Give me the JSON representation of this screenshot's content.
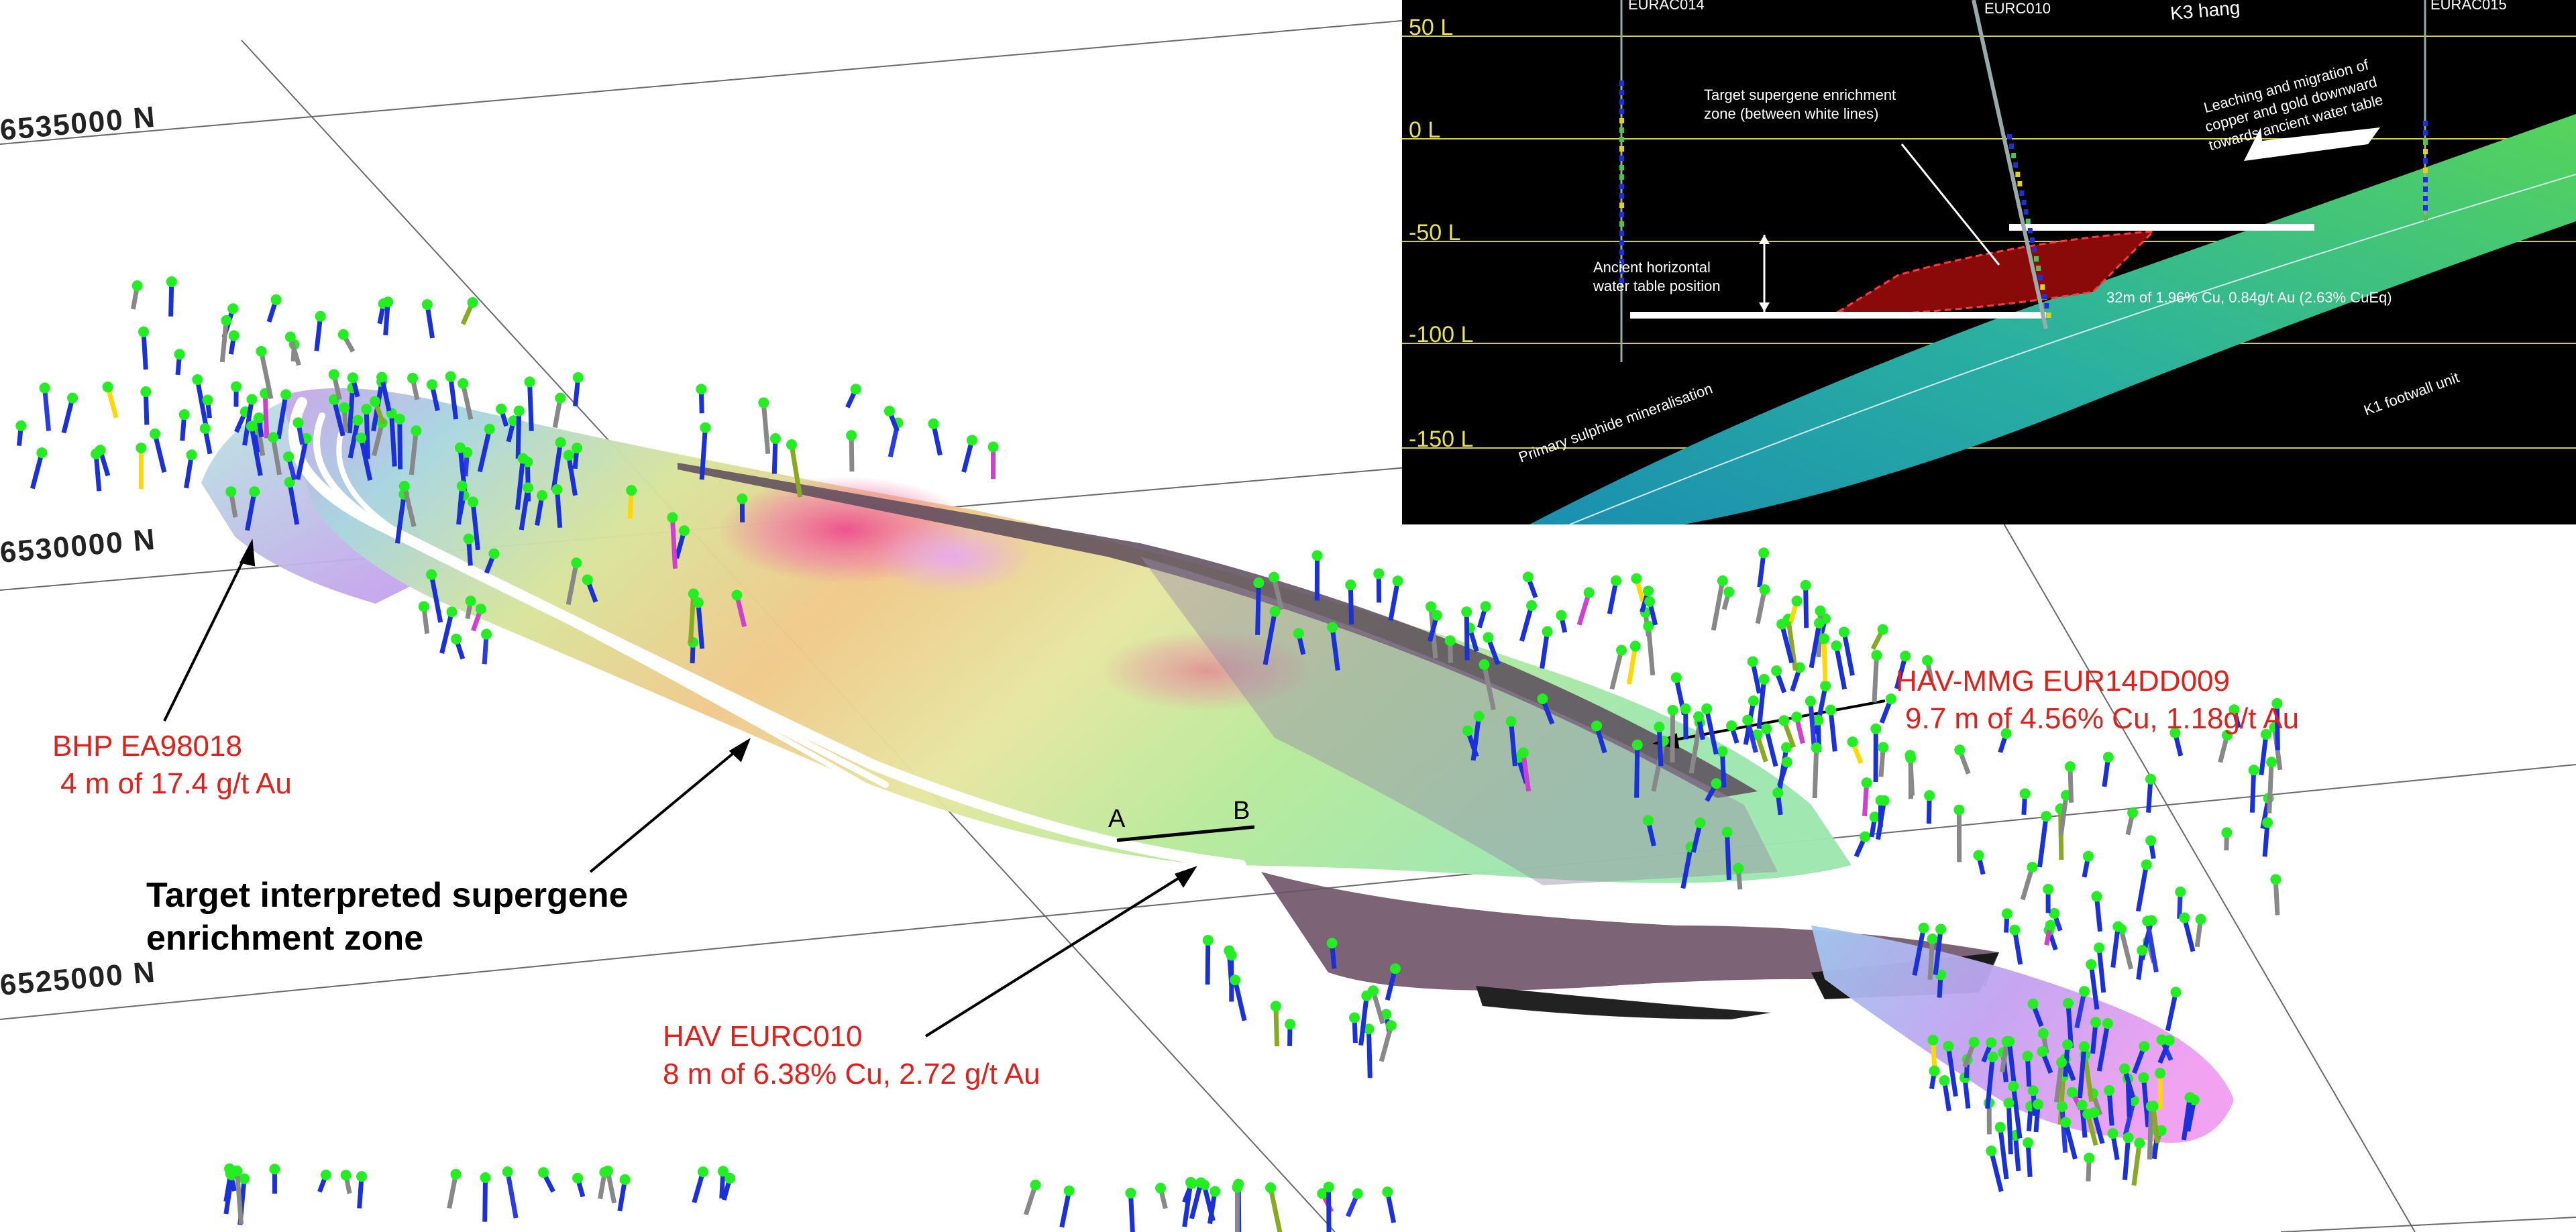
{
  "grid_labels": {
    "n1": "6535000 N",
    "n2": "6530000 N",
    "n3": "6525000 N"
  },
  "annotations": {
    "bhp_title": "BHP EA98018",
    "bhp_detail": "4 m of 17.4 g/t Au",
    "target_line1": "Target interpreted supergene",
    "target_line2": "enrichment zone",
    "hav_title": "HAV EURC010",
    "hav_detail": "8 m of 6.38% Cu, 2.72 g/t Au",
    "mmg_title": "HAV-MMG EUR14DD009",
    "mmg_detail": "9.7 m of 4.56% Cu, 1.18g/t Au",
    "section_a": "A",
    "section_b": "B"
  },
  "inset": {
    "levels": [
      "50 L",
      "0 L",
      "-50 L",
      "-100 L",
      "-150 L"
    ],
    "holes": [
      "EURAC014",
      "EURC010",
      "K3 hang",
      "EURAC015"
    ],
    "target_zone": [
      "Target supergene enrichment",
      "zone (between white lines)"
    ],
    "leaching": [
      "Leaching and migration of",
      "copper and gold  downward",
      "towards ancient water table"
    ],
    "water_table": [
      "Ancient horizontal",
      "water table position"
    ],
    "intercept": "32m of 1.96% Cu, 0.84g/t Au (2.63% CuEq)",
    "primary": "Primary sulphide mineralisation",
    "footwall": "K1 footwall unit"
  },
  "colors": {
    "annotation_red": "#e0201b",
    "level_yellow": "#e6e05a",
    "inset_bg": "#000000",
    "collar_green": "#22ee22"
  }
}
